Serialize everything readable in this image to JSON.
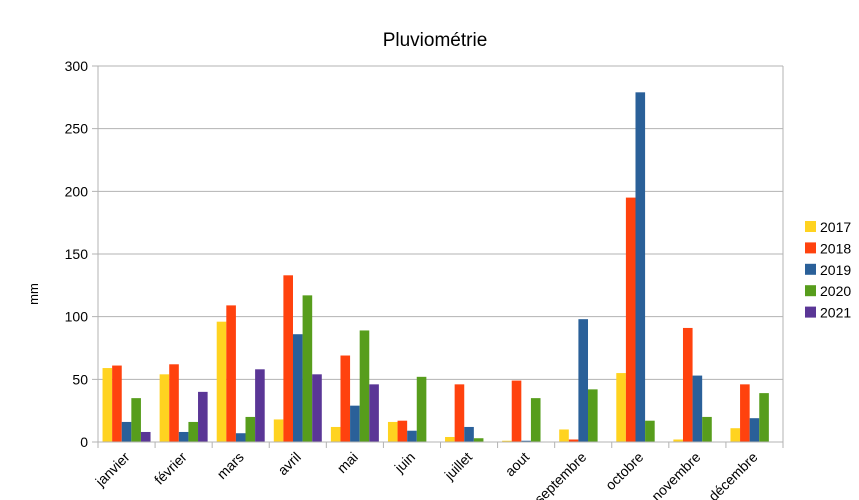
{
  "chart_data": {
    "type": "bar",
    "title": "Pluviométrie",
    "xlabel": "",
    "ylabel": "mm",
    "ylim": [
      0,
      300
    ],
    "yticks": [
      0,
      50,
      100,
      150,
      200,
      250,
      300
    ],
    "grid": true,
    "legend_position": "right",
    "categories": [
      "janvier",
      "février",
      "mars",
      "avril",
      "mai",
      "juin",
      "juillet",
      "aout",
      "septembre",
      "octobre",
      "novembre",
      "décembre"
    ],
    "series": [
      {
        "name": "2017",
        "color": "#ffd320",
        "values": [
          59,
          54,
          96,
          18,
          12,
          16,
          4,
          1,
          10,
          55,
          2,
          11
        ]
      },
      {
        "name": "2018",
        "color": "#ff420e",
        "values": [
          61,
          62,
          109,
          133,
          69,
          17,
          46,
          49,
          2,
          195,
          91,
          46
        ]
      },
      {
        "name": "2019",
        "color": "#2a6099",
        "values": [
          16,
          8,
          7,
          86,
          29,
          9,
          12,
          1,
          98,
          279,
          53,
          19
        ]
      },
      {
        "name": "2020",
        "color": "#579d1c",
        "values": [
          35,
          16,
          20,
          117,
          89,
          52,
          3,
          35,
          42,
          17,
          20,
          39
        ]
      },
      {
        "name": "2021",
        "color": "#5a3696",
        "values": [
          8,
          40,
          58,
          54,
          46,
          null,
          null,
          null,
          null,
          null,
          null,
          null
        ]
      }
    ]
  }
}
